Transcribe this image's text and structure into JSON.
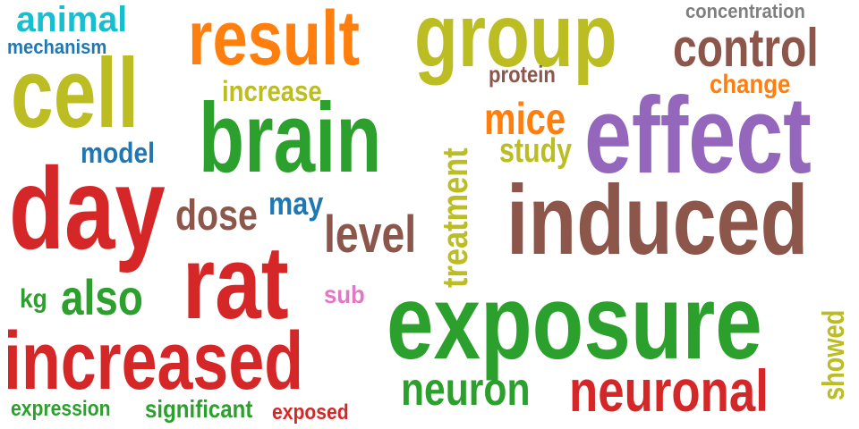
{
  "palette": {
    "background": "#ffffff",
    "red": "#d62728",
    "green": "#2ca02c",
    "olive": "#bcbd22",
    "brown": "#8c564b",
    "purple": "#9467bd",
    "orange": "#ff7f0e",
    "blue": "#1f77b4",
    "cyan": "#17becf",
    "gray": "#7f7f7f",
    "pink": "#e377c2"
  },
  "words": [
    {
      "text": "animal",
      "color": "#17becf"
    },
    {
      "text": "mechanism",
      "color": "#1f77b4"
    },
    {
      "text": "cell",
      "color": "#bcbd22"
    },
    {
      "text": "result",
      "color": "#ff7f0e"
    },
    {
      "text": "group",
      "color": "#bcbd22"
    },
    {
      "text": "concentration",
      "color": "#7f7f7f"
    },
    {
      "text": "control",
      "color": "#8c564b"
    },
    {
      "text": "protein",
      "color": "#8c564b"
    },
    {
      "text": "change",
      "color": "#ff7f0e"
    },
    {
      "text": "increase",
      "color": "#bcbd22"
    },
    {
      "text": "brain",
      "color": "#2ca02c"
    },
    {
      "text": "mice",
      "color": "#ff7f0e"
    },
    {
      "text": "effect",
      "color": "#9467bd"
    },
    {
      "text": "study",
      "color": "#bcbd22"
    },
    {
      "text": "model",
      "color": "#1f77b4"
    },
    {
      "text": "day",
      "color": "#d62728"
    },
    {
      "text": "dose",
      "color": "#8c564b"
    },
    {
      "text": "may",
      "color": "#1f77b4"
    },
    {
      "text": "level",
      "color": "#8c564b"
    },
    {
      "text": "induced",
      "color": "#8c564b"
    },
    {
      "text": "treatment",
      "color": "#bcbd22"
    },
    {
      "text": "rat",
      "color": "#d62728"
    },
    {
      "text": "kg",
      "color": "#2ca02c"
    },
    {
      "text": "also",
      "color": "#2ca02c"
    },
    {
      "text": "sub",
      "color": "#e377c2"
    },
    {
      "text": "exposure",
      "color": "#2ca02c"
    },
    {
      "text": "increased",
      "color": "#d62728"
    },
    {
      "text": "showed",
      "color": "#bcbd22"
    },
    {
      "text": "neuron",
      "color": "#2ca02c"
    },
    {
      "text": "neuronal",
      "color": "#d62728"
    },
    {
      "text": "expression",
      "color": "#2ca02c"
    },
    {
      "text": "significant",
      "color": "#2ca02c"
    },
    {
      "text": "exposed",
      "color": "#d62728"
    }
  ]
}
